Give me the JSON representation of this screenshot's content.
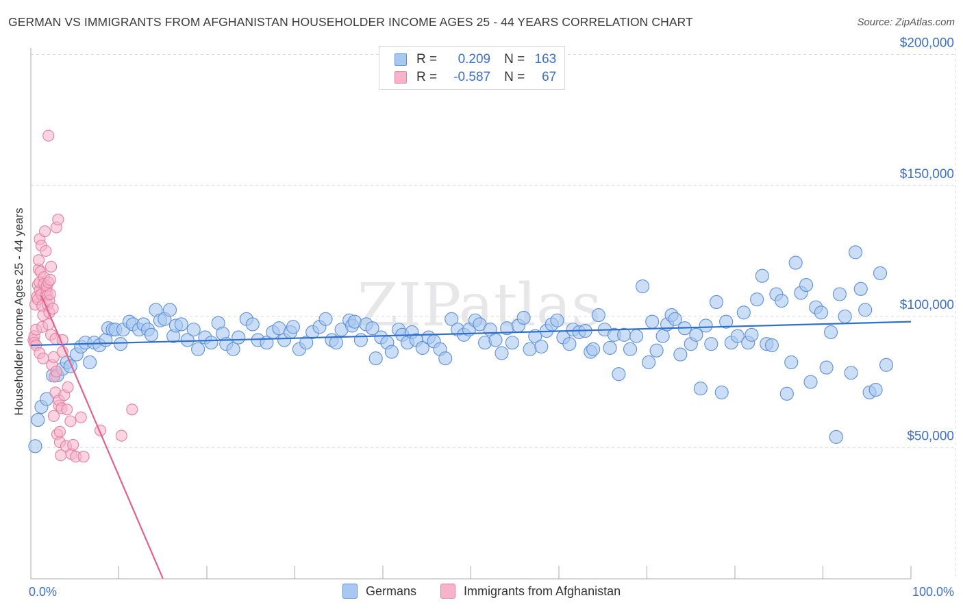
{
  "title": "GERMAN VS IMMIGRANTS FROM AFGHANISTAN HOUSEHOLDER INCOME AGES 25 - 44 YEARS CORRELATION CHART",
  "source": "Source: ZipAtlas.com",
  "watermark": "ZIPatlas",
  "legend": {
    "rows": [
      {
        "r_label": "R =",
        "r_value": "0.209",
        "n_label": "N =",
        "n_value": "163"
      },
      {
        "r_label": "R =",
        "r_value": "-0.587",
        "n_label": "N =",
        "n_value": "67"
      }
    ]
  },
  "colors": {
    "blue_fill": "#a9c8f0",
    "blue_stroke": "#5b8fd8",
    "blue_line": "#2f6fcc",
    "pink_fill": "#f6b3c9",
    "pink_stroke": "#e47fa2",
    "pink_line": "#e0608f",
    "axis_label": "#3b6fc9",
    "grid": "#d8d8d8"
  },
  "chart_data": {
    "type": "scatter",
    "title": "GERMAN VS IMMIGRANTS FROM AFGHANISTAN HOUSEHOLDER INCOME AGES 25 - 44 YEARS CORRELATION CHART",
    "xlabel": "",
    "ylabel": "Householder Income Ages 25 - 44 years",
    "xlim": [
      0,
      100
    ],
    "ylim": [
      0,
      205000
    ],
    "x_tick_labels": [
      "0.0%",
      "100.0%"
    ],
    "y_ticks": [
      50000,
      100000,
      150000,
      200000
    ],
    "y_tick_labels": [
      "$50,000",
      "$100,000",
      "$150,000",
      "$200,000"
    ],
    "grid": true,
    "series": [
      {
        "name": "Germans",
        "r": 0.209,
        "n": 163,
        "trend": {
          "x": [
            0,
            100
          ],
          "y": [
            89000,
            98000
          ]
        },
        "points": [
          [
            0.5,
            50500
          ],
          [
            0.8,
            60500
          ],
          [
            1.2,
            65500
          ],
          [
            1.8,
            68500
          ],
          [
            2.5,
            77500
          ],
          [
            3.0,
            77500
          ],
          [
            3.6,
            80000
          ],
          [
            4.1,
            82500
          ],
          [
            4.5,
            81000
          ],
          [
            5.2,
            85500
          ],
          [
            5.7,
            88500
          ],
          [
            6.2,
            90000
          ],
          [
            6.7,
            82500
          ],
          [
            7.2,
            90000
          ],
          [
            7.8,
            89000
          ],
          [
            8.5,
            91000
          ],
          [
            8.8,
            95500
          ],
          [
            9.3,
            95000
          ],
          [
            9.6,
            95000
          ],
          [
            10.2,
            89500
          ],
          [
            10.5,
            95000
          ],
          [
            11.2,
            98000
          ],
          [
            11.6,
            97000
          ],
          [
            12.3,
            95000
          ],
          [
            12.8,
            97000
          ],
          [
            13.3,
            95000
          ],
          [
            13.7,
            93000
          ],
          [
            14.2,
            102500
          ],
          [
            14.7,
            98500
          ],
          [
            15.2,
            99000
          ],
          [
            15.8,
            102500
          ],
          [
            16.2,
            92500
          ],
          [
            16.5,
            96500
          ],
          [
            17.1,
            97000
          ],
          [
            17.8,
            91000
          ],
          [
            18.5,
            95000
          ],
          [
            19.0,
            87500
          ],
          [
            19.8,
            92000
          ],
          [
            20.5,
            90000
          ],
          [
            21.3,
            97500
          ],
          [
            21.8,
            93500
          ],
          [
            22.2,
            89500
          ],
          [
            23.0,
            87500
          ],
          [
            23.6,
            92000
          ],
          [
            24.5,
            99000
          ],
          [
            25.2,
            97000
          ],
          [
            25.8,
            91000
          ],
          [
            26.8,
            90000
          ],
          [
            27.5,
            94000
          ],
          [
            28.2,
            95500
          ],
          [
            28.8,
            91000
          ],
          [
            29.5,
            94000
          ],
          [
            29.8,
            96000
          ],
          [
            30.5,
            87500
          ],
          [
            31.3,
            90000
          ],
          [
            32.0,
            94000
          ],
          [
            32.8,
            96000
          ],
          [
            33.5,
            99000
          ],
          [
            34.2,
            91000
          ],
          [
            34.7,
            90000
          ],
          [
            35.3,
            95000
          ],
          [
            36.2,
            98500
          ],
          [
            36.5,
            96500
          ],
          [
            36.8,
            98000
          ],
          [
            37.5,
            91000
          ],
          [
            38.1,
            97000
          ],
          [
            38.8,
            95500
          ],
          [
            39.2,
            84000
          ],
          [
            39.8,
            92000
          ],
          [
            40.5,
            90000
          ],
          [
            41.0,
            86500
          ],
          [
            41.8,
            95000
          ],
          [
            42.2,
            93000
          ],
          [
            42.8,
            90000
          ],
          [
            43.3,
            94000
          ],
          [
            43.8,
            91000
          ],
          [
            44.5,
            88000
          ],
          [
            45.2,
            92000
          ],
          [
            45.8,
            90500
          ],
          [
            46.5,
            87500
          ],
          [
            47.1,
            84000
          ],
          [
            47.8,
            99000
          ],
          [
            48.5,
            95000
          ],
          [
            49.2,
            93000
          ],
          [
            49.8,
            95000
          ],
          [
            50.5,
            98500
          ],
          [
            51.0,
            97000
          ],
          [
            51.6,
            90000
          ],
          [
            52.2,
            95000
          ],
          [
            52.8,
            91000
          ],
          [
            53.5,
            86000
          ],
          [
            54.1,
            95500
          ],
          [
            54.7,
            90000
          ],
          [
            55.4,
            96500
          ],
          [
            56.0,
            99500
          ],
          [
            56.7,
            87500
          ],
          [
            57.3,
            92500
          ],
          [
            58.0,
            88500
          ],
          [
            58.6,
            94500
          ],
          [
            59.2,
            97000
          ],
          [
            59.8,
            98500
          ],
          [
            60.5,
            92000
          ],
          [
            61.2,
            89500
          ],
          [
            61.6,
            95000
          ],
          [
            62.3,
            94000
          ],
          [
            63.0,
            94500
          ],
          [
            63.6,
            86500
          ],
          [
            63.9,
            87500
          ],
          [
            64.5,
            100500
          ],
          [
            65.2,
            95000
          ],
          [
            65.8,
            88000
          ],
          [
            66.3,
            93000
          ],
          [
            66.8,
            78000
          ],
          [
            67.4,
            93000
          ],
          [
            68.1,
            87500
          ],
          [
            68.8,
            92500
          ],
          [
            69.5,
            111500
          ],
          [
            70.2,
            82500
          ],
          [
            70.6,
            98000
          ],
          [
            71.1,
            87000
          ],
          [
            71.8,
            92500
          ],
          [
            72.3,
            97000
          ],
          [
            72.8,
            100500
          ],
          [
            73.2,
            99000
          ],
          [
            73.8,
            85500
          ],
          [
            74.3,
            95500
          ],
          [
            75.0,
            89500
          ],
          [
            75.6,
            93000
          ],
          [
            76.1,
            72500
          ],
          [
            76.7,
            96500
          ],
          [
            77.3,
            89500
          ],
          [
            77.9,
            105500
          ],
          [
            78.5,
            71000
          ],
          [
            79.0,
            98000
          ],
          [
            79.6,
            90000
          ],
          [
            80.3,
            92500
          ],
          [
            81.0,
            101500
          ],
          [
            81.5,
            90000
          ],
          [
            81.9,
            93000
          ],
          [
            82.5,
            106500
          ],
          [
            83.1,
            115500
          ],
          [
            83.6,
            89500
          ],
          [
            84.2,
            89000
          ],
          [
            84.7,
            108500
          ],
          [
            85.3,
            106000
          ],
          [
            85.9,
            70500
          ],
          [
            86.4,
            82500
          ],
          [
            86.9,
            120500
          ],
          [
            87.5,
            109000
          ],
          [
            88.1,
            112000
          ],
          [
            88.6,
            75000
          ],
          [
            89.2,
            103500
          ],
          [
            89.8,
            101500
          ],
          [
            90.4,
            80500
          ],
          [
            90.9,
            94000
          ],
          [
            91.5,
            54000
          ],
          [
            91.9,
            108500
          ],
          [
            92.5,
            100000
          ],
          [
            93.2,
            78500
          ],
          [
            93.7,
            124500
          ],
          [
            94.3,
            110500
          ],
          [
            94.8,
            102500
          ],
          [
            95.3,
            71000
          ],
          [
            96.0,
            72000
          ],
          [
            96.5,
            116500
          ],
          [
            97.2,
            81500
          ]
        ]
      },
      {
        "name": "Immigrants from Afghanistan",
        "r": -0.587,
        "n": 67,
        "trend": {
          "x": [
            1.2,
            15.0
          ],
          "y": [
            108000,
            0
          ]
        },
        "points": [
          [
            0.3,
            91000
          ],
          [
            0.4,
            92500
          ],
          [
            0.4,
            90000
          ],
          [
            0.5,
            104500
          ],
          [
            0.6,
            89000
          ],
          [
            0.6,
            95000
          ],
          [
            0.7,
            107500
          ],
          [
            0.8,
            106500
          ],
          [
            0.8,
            112000
          ],
          [
            0.9,
            118000
          ],
          [
            0.9,
            121500
          ],
          [
            1.0,
            129500
          ],
          [
            1.0,
            110000
          ],
          [
            1.0,
            113000
          ],
          [
            1.0,
            86000
          ],
          [
            1.1,
            117000
          ],
          [
            1.2,
            127000
          ],
          [
            1.2,
            108500
          ],
          [
            1.3,
            96000
          ],
          [
            1.3,
            104000
          ],
          [
            1.4,
            100500
          ],
          [
            1.4,
            84000
          ],
          [
            1.5,
            115000
          ],
          [
            1.5,
            112500
          ],
          [
            1.6,
            132500
          ],
          [
            1.7,
            108000
          ],
          [
            1.7,
            125000
          ],
          [
            1.8,
            110000
          ],
          [
            1.8,
            111500
          ],
          [
            1.9,
            108000
          ],
          [
            1.9,
            104500
          ],
          [
            2.0,
            97000
          ],
          [
            2.0,
            113000
          ],
          [
            2.0,
            169000
          ],
          [
            2.1,
            106000
          ],
          [
            2.1,
            101500
          ],
          [
            2.2,
            108500
          ],
          [
            2.2,
            114000
          ],
          [
            2.3,
            93000
          ],
          [
            2.3,
            119000
          ],
          [
            2.4,
            81500
          ],
          [
            2.5,
            103000
          ],
          [
            2.6,
            84500
          ],
          [
            2.6,
            62000
          ],
          [
            2.7,
            77000
          ],
          [
            2.8,
            71000
          ],
          [
            2.8,
            91500
          ],
          [
            2.9,
            79000
          ],
          [
            2.9,
            134000
          ],
          [
            3.0,
            55000
          ],
          [
            3.1,
            137000
          ],
          [
            3.2,
            66000
          ],
          [
            3.2,
            68000
          ],
          [
            3.3,
            56000
          ],
          [
            3.3,
            52000
          ],
          [
            3.4,
            47000
          ],
          [
            3.5,
            65000
          ],
          [
            3.6,
            91000
          ],
          [
            3.6,
            86500
          ],
          [
            3.8,
            70000
          ],
          [
            4.0,
            50500
          ],
          [
            4.1,
            64500
          ],
          [
            4.2,
            73000
          ],
          [
            4.5,
            60000
          ],
          [
            4.6,
            47500
          ],
          [
            4.8,
            51000
          ],
          [
            5.1,
            46500
          ],
          [
            5.7,
            61500
          ],
          [
            6.0,
            46500
          ],
          [
            7.9,
            56500
          ],
          [
            10.3,
            54500
          ],
          [
            11.5,
            64500
          ]
        ]
      }
    ]
  },
  "bottom_legend": {
    "items": [
      "Germans",
      "Immigrants from Afghanistan"
    ]
  },
  "x_axis": {
    "left_label": "0.0%",
    "right_label": "100.0%"
  }
}
